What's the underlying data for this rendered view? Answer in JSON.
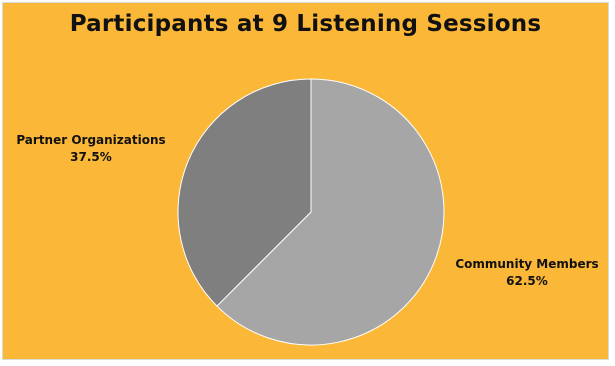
{
  "chart_data": {
    "type": "pie",
    "title": "Participants at 9 Listening Sessions",
    "slices": [
      {
        "label": "Community Members",
        "value": 62.5,
        "display": "62.5%",
        "color": "#a6a6a6"
      },
      {
        "label": "Partner Organizations",
        "value": 37.5,
        "display": "37.5%",
        "color": "#7f7f7f"
      }
    ],
    "legend": "none",
    "background": "#fbb737"
  }
}
